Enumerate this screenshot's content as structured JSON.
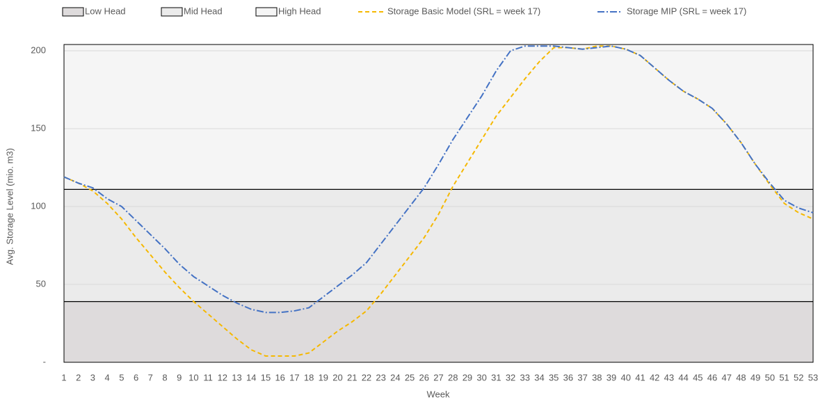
{
  "chart_data": {
    "type": "line",
    "x_label": "Week",
    "y_label": "Avg. Storage Level (mio. m3)",
    "categories": [
      "1",
      "2",
      "3",
      "4",
      "5",
      "6",
      "7",
      "8",
      "9",
      "10",
      "11",
      "12",
      "13",
      "14",
      "15",
      "16",
      "17",
      "18",
      "19",
      "20",
      "21",
      "22",
      "23",
      "24",
      "25",
      "26",
      "27",
      "28",
      "29",
      "30",
      "31",
      "32",
      "33",
      "34",
      "35",
      "36",
      "37",
      "38",
      "39",
      "40",
      "41",
      "42",
      "43",
      "44",
      "45",
      "46",
      "47",
      "48",
      "49",
      "50",
      "51",
      "52",
      "53"
    ],
    "bands": [
      {
        "name": "Low Head",
        "color": "#dedbdc",
        "value": 39
      },
      {
        "name": "Mid Head",
        "color": "#ebebeb",
        "value": 72
      },
      {
        "name": "High Head",
        "color": "#f5f5f5",
        "value": 93
      }
    ],
    "series": [
      {
        "name": "Storage Basic Model (SRL = week 17)",
        "color": "#f5b800",
        "dash": "6,4",
        "values": [
          119,
          115,
          110,
          102,
          92,
          80,
          69,
          58,
          48,
          39,
          31,
          23,
          15,
          8,
          4,
          4,
          4,
          6,
          13,
          20,
          26,
          33,
          44,
          56,
          68,
          80,
          95,
          113,
          128,
          143,
          158,
          170,
          182,
          193,
          202,
          202,
          201,
          203,
          203,
          201,
          197,
          189,
          181,
          174,
          169,
          163,
          153,
          141,
          127,
          114,
          102,
          96,
          92
        ]
      },
      {
        "name": "Storage MIP (SRL = week 17)",
        "color": "#4472c4",
        "dash": "10,3,2,3",
        "values": [
          119,
          115,
          112,
          105,
          100,
          91,
          82,
          73,
          63,
          55,
          49,
          43,
          38,
          34,
          32,
          32,
          33,
          35,
          42,
          49,
          56,
          64,
          76,
          88,
          100,
          112,
          127,
          143,
          157,
          171,
          187,
          200,
          203,
          203,
          203,
          202,
          201,
          202,
          203,
          201,
          197,
          189,
          181,
          174,
          169,
          163,
          153,
          141,
          127,
          115,
          104,
          99,
          96
        ]
      }
    ],
    "ylim": [
      0,
      204
    ],
    "yticks": [
      {
        "value": 0,
        "label": "-"
      },
      50,
      100,
      150,
      200
    ],
    "grid": true
  }
}
